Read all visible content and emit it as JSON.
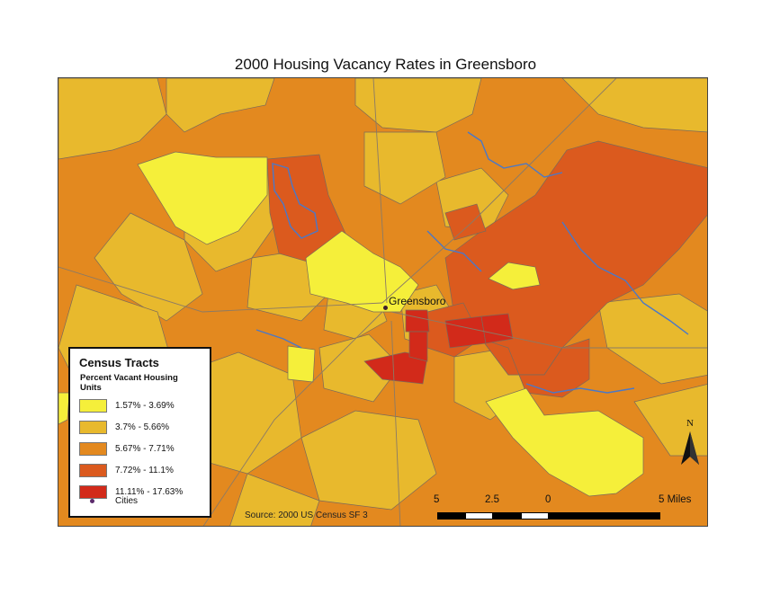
{
  "map": {
    "title": "2000 Housing Vacancy Rates in Greensboro",
    "source": "Source: 2000 US Census SF 3",
    "city_label": "Greensboro",
    "north_label": "N"
  },
  "legend": {
    "title": "Census Tracts",
    "subtitle": "Percent Vacant Housing Units",
    "classes": [
      {
        "label": "1.57% - 3.69%",
        "color": "#f5ef3a"
      },
      {
        "label": "3.7% - 5.66%",
        "color": "#e8b92d"
      },
      {
        "label": "5.67% - 7.71%",
        "color": "#e3891f"
      },
      {
        "label": "7.72% - 11.1%",
        "color": "#db5a1e"
      },
      {
        "label": "11.11% - 17.63%",
        "color": "#d22a1a"
      }
    ],
    "cities_label": "Cities",
    "cities_color": "#5b2a6b"
  },
  "scale": {
    "labels": [
      "5",
      "2.5",
      "0",
      "5 Miles"
    ]
  },
  "colors": {
    "water": "#4a78c8",
    "boundary": "#7a6a5a"
  }
}
